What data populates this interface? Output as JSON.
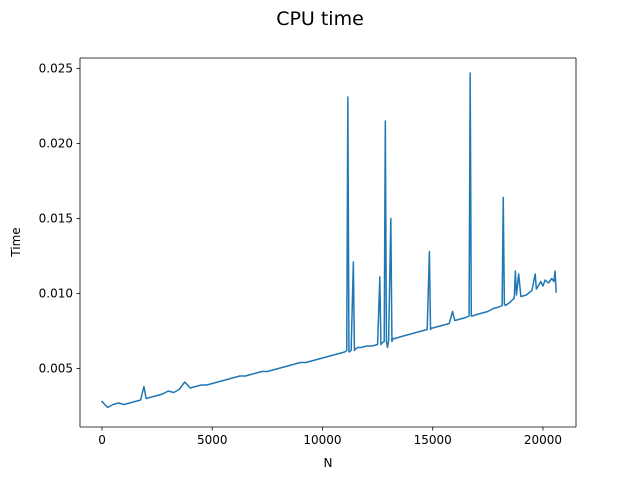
{
  "chart_data": {
    "type": "line",
    "title": "CPU time",
    "xlabel": "N",
    "ylabel": "Time",
    "xlim": [
      -1000,
      21500
    ],
    "ylim": [
      0.0011,
      0.0257
    ],
    "xticks": [
      0,
      5000,
      10000,
      15000,
      20000
    ],
    "yticks": [
      0.005,
      0.01,
      0.015,
      0.02,
      0.025
    ],
    "xtick_labels": [
      "0",
      "5000",
      "10000",
      "15000",
      "20000"
    ],
    "ytick_labels": [
      "0.005",
      "0.010",
      "0.015",
      "0.020",
      "0.025"
    ],
    "grid": false,
    "series": [
      {
        "color": "#1f77b4",
        "x": [
          0,
          250,
          500,
          750,
          1000,
          1250,
          1500,
          1750,
          1900,
          2000,
          2250,
          2500,
          2750,
          3000,
          3250,
          3500,
          3750,
          4000,
          4250,
          4500,
          4750,
          5000,
          5250,
          5500,
          5750,
          6000,
          6250,
          6500,
          6750,
          7000,
          7250,
          7500,
          7750,
          8000,
          8250,
          8500,
          8750,
          9000,
          9250,
          9500,
          9750,
          10000,
          10250,
          10500,
          10750,
          11000,
          11100,
          11150,
          11200,
          11300,
          11400,
          11450,
          11500,
          11600,
          11750,
          12000,
          12250,
          12500,
          12600,
          12650,
          12700,
          12800,
          12850,
          12900,
          12950,
          13000,
          13100,
          13150,
          13200,
          13300,
          13500,
          13750,
          14000,
          14250,
          14500,
          14750,
          14850,
          14900,
          14950,
          15000,
          15250,
          15500,
          15750,
          15900,
          16000,
          16250,
          16500,
          16650,
          16700,
          16750,
          16800,
          17000,
          17250,
          17500,
          17750,
          18000,
          18150,
          18200,
          18250,
          18300,
          18500,
          18700,
          18750,
          18800,
          18900,
          19000,
          19250,
          19500,
          19650,
          19700,
          19750,
          19900,
          20000,
          20100,
          20250,
          20400,
          20500,
          20550,
          20600
        ],
        "y": [
          0.0028,
          0.0024,
          0.0026,
          0.0027,
          0.0026,
          0.0027,
          0.0028,
          0.0029,
          0.0038,
          0.003,
          0.0031,
          0.0032,
          0.0033,
          0.0035,
          0.0034,
          0.0036,
          0.0041,
          0.0037,
          0.0038,
          0.0039,
          0.0039,
          0.004,
          0.0041,
          0.0042,
          0.0043,
          0.0044,
          0.0045,
          0.0045,
          0.0046,
          0.0047,
          0.0048,
          0.0048,
          0.0049,
          0.005,
          0.0051,
          0.0052,
          0.0053,
          0.0054,
          0.0054,
          0.0055,
          0.0056,
          0.0057,
          0.0058,
          0.0059,
          0.006,
          0.0061,
          0.0062,
          0.0231,
          0.0061,
          0.0062,
          0.0121,
          0.0062,
          0.0063,
          0.0064,
          0.0064,
          0.0065,
          0.0065,
          0.0066,
          0.0111,
          0.0066,
          0.0067,
          0.0068,
          0.0215,
          0.0068,
          0.0064,
          0.0069,
          0.015,
          0.0068,
          0.007,
          0.007,
          0.0071,
          0.0072,
          0.0073,
          0.0074,
          0.0075,
          0.0076,
          0.0128,
          0.0076,
          0.0077,
          0.0077,
          0.0078,
          0.0079,
          0.008,
          0.0088,
          0.0082,
          0.0083,
          0.0084,
          0.0085,
          0.0247,
          0.0085,
          0.0085,
          0.0086,
          0.0087,
          0.0088,
          0.009,
          0.0091,
          0.0092,
          0.0164,
          0.0093,
          0.0092,
          0.0094,
          0.0097,
          0.0115,
          0.0099,
          0.0113,
          0.0098,
          0.0099,
          0.0102,
          0.0113,
          0.0103,
          0.0104,
          0.0108,
          0.0105,
          0.0109,
          0.0107,
          0.011,
          0.0108,
          0.0115,
          0.0101
        ]
      }
    ]
  }
}
